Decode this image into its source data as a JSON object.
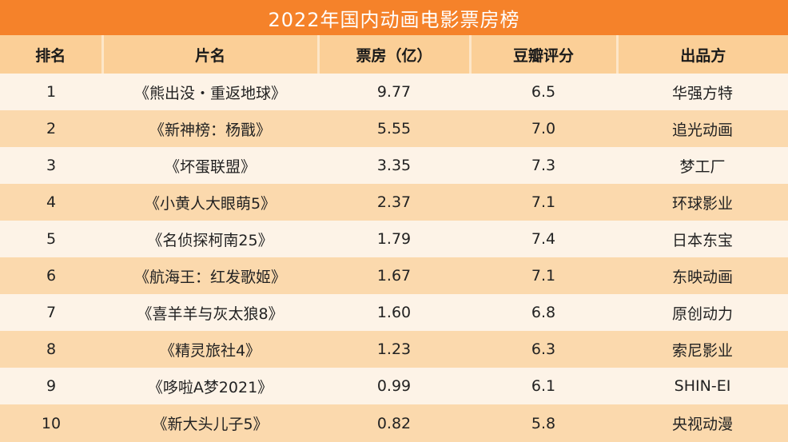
{
  "title": "2022年国内动画电影票房榜",
  "columns": [
    "排名",
    "片名",
    "票房（亿）",
    "豆瓣评分",
    "出品方"
  ],
  "rows": [
    {
      "rank": "1",
      "title": "《熊出没・重返地球》",
      "box_office": "9.77",
      "score": "6.5",
      "producer": "华强方特"
    },
    {
      "rank": "2",
      "title": "《新神榜：杨戬》",
      "box_office": "5.55",
      "score": "7.0",
      "producer": "追光动画"
    },
    {
      "rank": "3",
      "title": "《坏蛋联盟》",
      "box_office": "3.35",
      "score": "7.3",
      "producer": "梦工厂"
    },
    {
      "rank": "4",
      "title": "《小黄人大眼萌5》",
      "box_office": "2.37",
      "score": "7.1",
      "producer": "环球影业"
    },
    {
      "rank": "5",
      "title": "《名侦探柯南25》",
      "box_office": "1.79",
      "score": "7.4",
      "producer": "日本东宝"
    },
    {
      "rank": "6",
      "title": "《航海王：红发歌姬》",
      "box_office": "1.67",
      "score": "7.1",
      "producer": "东映动画"
    },
    {
      "rank": "7",
      "title": "《喜羊羊与灰太狼8》",
      "box_office": "1.60",
      "score": "6.8",
      "producer": "原创动力"
    },
    {
      "rank": "8",
      "title": "《精灵旅社4》",
      "box_office": "1.23",
      "score": "6.3",
      "producer": "索尼影业"
    },
    {
      "rank": "9",
      "title": "《哆啦A梦2021》",
      "box_office": "0.99",
      "score": "6.1",
      "producer": "SHIN-EI"
    },
    {
      "rank": "10",
      "title": "《新大头儿子5》",
      "box_office": "0.82",
      "score": "5.8",
      "producer": "央视动漫"
    }
  ]
}
